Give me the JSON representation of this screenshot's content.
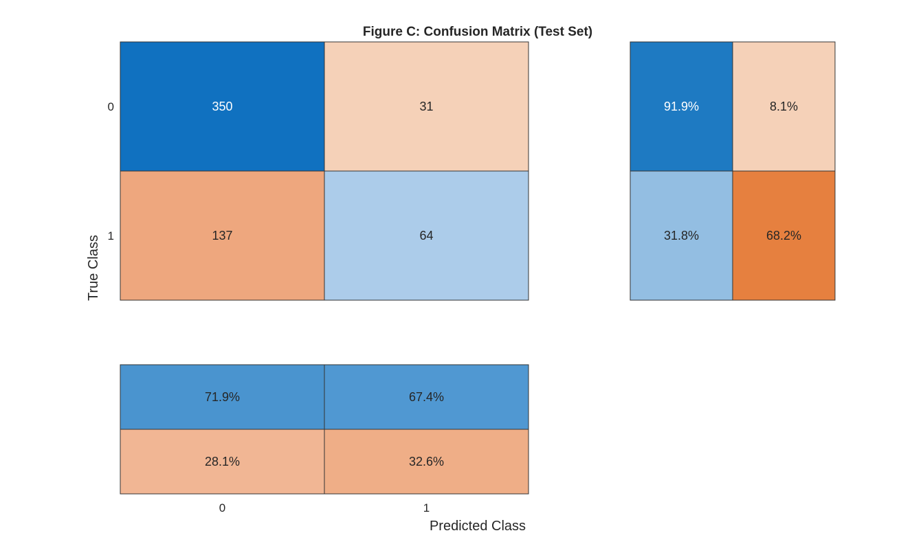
{
  "chart_data": {
    "type": "heatmap",
    "title": "Figure C: Confusion Matrix (Test Set)",
    "xlabel": "Predicted Class",
    "ylabel": "True Class",
    "classes": [
      "0",
      "1"
    ],
    "matrix": {
      "values": [
        [
          350,
          31
        ],
        [
          137,
          64
        ]
      ],
      "colors": [
        [
          "#1071c0",
          "#f5d1b8"
        ],
        [
          "#eea77e",
          "#acccea"
        ]
      ],
      "text_colors": [
        [
          "#ffffff",
          "#262626"
        ],
        [
          "#262626",
          "#262626"
        ]
      ]
    },
    "row_summary": {
      "values": [
        [
          "91.9%",
          "8.1%"
        ],
        [
          "31.8%",
          "68.2%"
        ]
      ],
      "colors": [
        [
          "#1e7ac2",
          "#f5d1b8"
        ],
        [
          "#93bee2",
          "#e6803f"
        ]
      ],
      "text_colors": [
        [
          "#ffffff",
          "#262626"
        ],
        [
          "#262626",
          "#262626"
        ]
      ]
    },
    "column_summary": {
      "values": [
        [
          "71.9%",
          "67.4%"
        ],
        [
          "28.1%",
          "32.6%"
        ]
      ],
      "colors": [
        [
          "#4a94cf",
          "#5098d2"
        ],
        [
          "#f1b694",
          "#efae87"
        ]
      ],
      "text_colors": [
        [
          "#262626",
          "#262626"
        ],
        [
          "#262626",
          "#262626"
        ]
      ]
    }
  }
}
